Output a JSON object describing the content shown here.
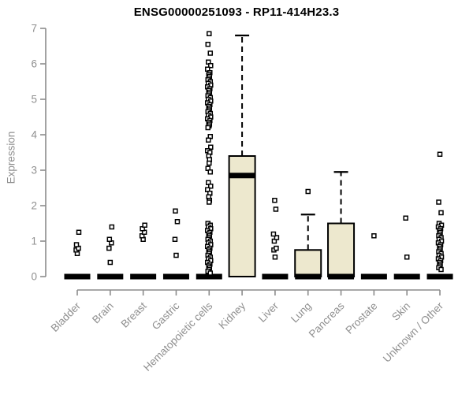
{
  "chart_data": {
    "type": "boxplot",
    "title": "ENSG00000251093 - RP11-414H23.3",
    "ylabel": "Expression",
    "ylim": [
      0,
      7
    ],
    "yticks": [
      0,
      1,
      2,
      3,
      4,
      5,
      6,
      7
    ],
    "grid": false,
    "legend": "none",
    "colors": {
      "box_fill": "#EDE8CE",
      "box_stroke": "#000000",
      "whisker": "#000000",
      "outlier_stroke": "#000000",
      "outlier_fill": "#FFFFFF",
      "axis": "#8c8c8c",
      "tick_label": "#8f8f8f",
      "title": "#000000"
    },
    "categories": [
      "Bladder",
      "Brain",
      "Breast",
      "Gastric",
      "Hematopoietic cells",
      "Kidney",
      "Liver",
      "Lung",
      "Pancreas",
      "Prostate",
      "Skin",
      "Unknown / Other"
    ],
    "boxes": [
      {
        "category": "Bladder",
        "q1": 0,
        "median": 0,
        "q3": 0,
        "whisker_low": 0,
        "whisker_high": 0,
        "outliers": [
          0.65,
          0.75,
          0.8,
          0.9,
          1.25
        ]
      },
      {
        "category": "Brain",
        "q1": 0,
        "median": 0,
        "q3": 0,
        "whisker_low": 0,
        "whisker_high": 0,
        "outliers": [
          0.4,
          0.8,
          0.95,
          1.05,
          1.4
        ]
      },
      {
        "category": "Breast",
        "q1": 0,
        "median": 0,
        "q3": 0,
        "whisker_low": 0,
        "whisker_high": 0,
        "outliers": [
          1.05,
          1.15,
          1.25,
          1.35,
          1.45
        ]
      },
      {
        "category": "Gastric",
        "q1": 0,
        "median": 0,
        "q3": 0,
        "whisker_low": 0,
        "whisker_high": 0,
        "outliers": [
          0.6,
          1.05,
          1.55,
          1.85
        ]
      },
      {
        "category": "Hematopoietic cells",
        "q1": 0,
        "median": 0,
        "q3": 0,
        "whisker_low": 0,
        "whisker_high": 0,
        "outliers": [
          6.85,
          6.55,
          6.3,
          6.05,
          5.95,
          5.85,
          5.75,
          5.7,
          5.65,
          5.6,
          5.55,
          5.5,
          5.45,
          5.4,
          5.35,
          5.3,
          5.25,
          5.2,
          5.15,
          5.1,
          5.05,
          5.0,
          4.95,
          4.9,
          4.85,
          4.8,
          4.75,
          4.7,
          4.65,
          4.6,
          4.55,
          4.5,
          4.45,
          4.4,
          4.35,
          4.3,
          4.25,
          4.2,
          3.95,
          3.85,
          3.65,
          3.55,
          3.5,
          3.4,
          3.3,
          3.2,
          3.05,
          2.95,
          2.65,
          2.55,
          2.45,
          2.35,
          2.25,
          2.15,
          2.1,
          1.5,
          1.45,
          1.4,
          1.35,
          1.3,
          1.25,
          1.2,
          1.15,
          1.1,
          1.05,
          1.0,
          0.95,
          0.9,
          0.85,
          0.8,
          0.75,
          0.7,
          0.65,
          0.6,
          0.55,
          0.5,
          0.45,
          0.4,
          0.35,
          0.3,
          0.25,
          0.2,
          0.15,
          0.1
        ]
      },
      {
        "category": "Kidney",
        "q1": 0,
        "median": 2.85,
        "q3": 3.4,
        "whisker_low": 0,
        "whisker_high": 6.8,
        "outliers": []
      },
      {
        "category": "Liver",
        "q1": 0,
        "median": 0,
        "q3": 0,
        "whisker_low": 0,
        "whisker_high": 0,
        "outliers": [
          0.55,
          0.75,
          0.8,
          1.0,
          1.1,
          1.2,
          1.9,
          2.15
        ]
      },
      {
        "category": "Lung",
        "q1": 0,
        "median": 0,
        "q3": 0.75,
        "whisker_low": 0,
        "whisker_high": 1.75,
        "outliers": [
          2.4
        ]
      },
      {
        "category": "Pancreas",
        "q1": 0,
        "median": 0,
        "q3": 1.5,
        "whisker_low": 0,
        "whisker_high": 2.95,
        "outliers": []
      },
      {
        "category": "Prostate",
        "q1": 0,
        "median": 0,
        "q3": 0,
        "whisker_low": 0,
        "whisker_high": 0,
        "outliers": [
          1.15
        ]
      },
      {
        "category": "Skin",
        "q1": 0,
        "median": 0,
        "q3": 0,
        "whisker_low": 0,
        "whisker_high": 0,
        "outliers": [
          0.55,
          1.65
        ]
      },
      {
        "category": "Unknown / Other",
        "q1": 0,
        "median": 0,
        "q3": 0,
        "whisker_low": 0,
        "whisker_high": 0,
        "outliers": [
          3.45,
          2.1,
          1.8,
          1.5,
          1.45,
          1.4,
          1.35,
          1.3,
          1.25,
          1.2,
          1.15,
          1.1,
          1.05,
          1.0,
          0.95,
          0.9,
          0.85,
          0.8,
          0.75,
          0.7,
          0.65,
          0.6,
          0.55,
          0.5,
          0.45,
          0.4,
          0.35,
          0.3,
          0.25,
          0.2
        ]
      }
    ]
  }
}
